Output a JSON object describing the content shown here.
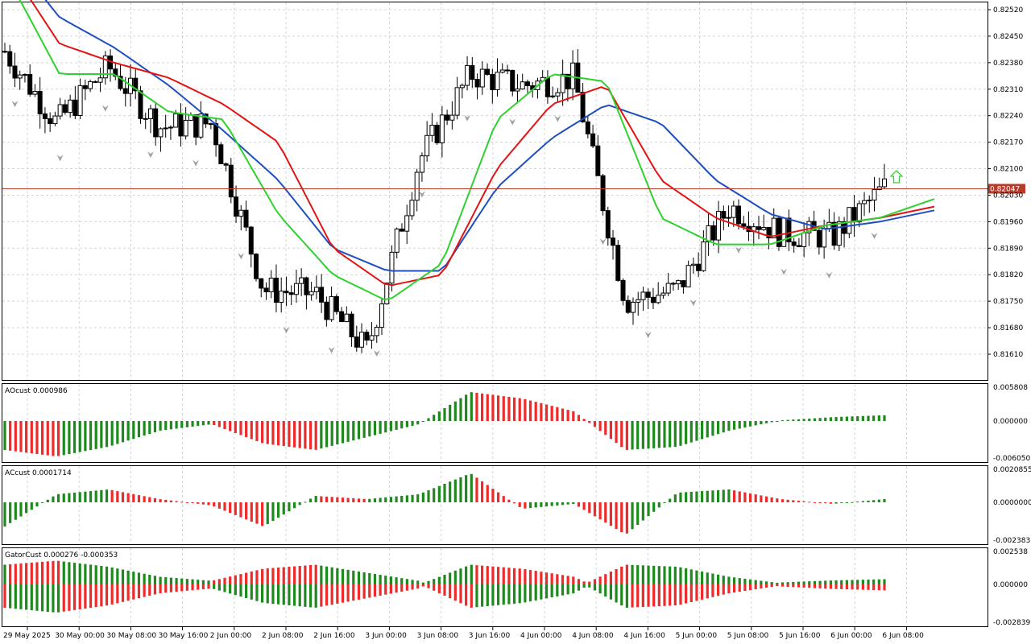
{
  "colors": {
    "background": "#ffffff",
    "grid": "#d4d4d4",
    "candle_bull": "#ffffff",
    "candle_bear": "#000000",
    "jaw": "#1f4fbf",
    "teeth": "#e11414",
    "lips": "#2fd12f",
    "bid_line": "#b83a2a",
    "bid_label_bg": "#b83a2a",
    "hist_green": "#1e8a1e",
    "hist_red": "#ee2a2a",
    "fractal": "#a0a0a0",
    "signal_arrow": "#3ccf3c"
  },
  "price_panel": {
    "price_ticks": [
      "0.82520",
      "0.82450",
      "0.82380",
      "0.82310",
      "0.82240",
      "0.82170",
      "0.82100",
      "0.82030",
      "0.81960",
      "0.81890",
      "0.81820",
      "0.81750",
      "0.81680",
      "0.81610"
    ],
    "current_price": "0.82047",
    "current_price_value": 0.82047
  },
  "ao_panel": {
    "label": "AOcust 0.000986",
    "ticks": [
      "0.005808",
      "0.000000",
      "-0.006050"
    ]
  },
  "ac_panel": {
    "label": "ACcust 0.0001714",
    "ticks": [
      "0.0020855",
      "0.0000000",
      "-0.0023832"
    ]
  },
  "gator_panel": {
    "label": "GatorCust 0.000276 -0.000353",
    "ticks": [
      "0.002538",
      "0.000000",
      "-0.002839"
    ]
  },
  "time_axis": [
    "29 May 2025",
    "30 May 00:00",
    "30 May 08:00",
    "30 May 16:00",
    "2 Jun 00:00",
    "2 Jun 08:00",
    "2 Jun 16:00",
    "3 Jun 00:00",
    "3 Jun 08:00",
    "3 Jun 16:00",
    "4 Jun 00:00",
    "4 Jun 08:00",
    "4 Jun 16:00",
    "5 Jun 00:00",
    "5 Jun 08:00",
    "5 Jun 16:00",
    "6 Jun 00:00",
    "6 Jun 08:00"
  ],
  "chart_data": {
    "type": "candlestick",
    "symbol_timeframe": "",
    "x_categories": [
      "29 May 2025",
      "30 May 00:00",
      "30 May 08:00",
      "30 May 16:00",
      "2 Jun 00:00",
      "2 Jun 08:00",
      "2 Jun 16:00",
      "3 Jun 00:00",
      "3 Jun 08:00",
      "3 Jun 16:00",
      "4 Jun 00:00",
      "4 Jun 08:00",
      "4 Jun 16:00",
      "5 Jun 00:00",
      "5 Jun 08:00",
      "5 Jun 16:00",
      "6 Jun 00:00",
      "6 Jun 08:00"
    ],
    "y_range": [
      0.8157,
      0.8255
    ],
    "grid": true,
    "key_points": [
      {
        "time": "29 May 2025",
        "close": 0.8241
      },
      {
        "time": "30 May 00:00",
        "close": 0.8222
      },
      {
        "time": "30 May 08:00",
        "close": 0.8237
      },
      {
        "time": "30 May 16:00",
        "close": 0.8221
      },
      {
        "time": "2 Jun 00:00",
        "close": 0.8222
      },
      {
        "time": "2 Jun 08:00",
        "close": 0.8178
      },
      {
        "time": "2 Jun 16:00",
        "close": 0.8177
      },
      {
        "time": "3 Jun 00:00",
        "close": 0.8162
      },
      {
        "time": "3 Jun 08:00",
        "close": 0.8212
      },
      {
        "time": "3 Jun 16:00",
        "close": 0.8235
      },
      {
        "time": "4 Jun 00:00",
        "close": 0.8232
      },
      {
        "time": "4 Jun 08:00",
        "close": 0.8234
      },
      {
        "time": "4 Jun 16:00",
        "close": 0.8175
      },
      {
        "time": "5 Jun 00:00",
        "close": 0.8178
      },
      {
        "time": "5 Jun 08:00",
        "close": 0.82
      },
      {
        "time": "5 Jun 16:00",
        "close": 0.8193
      },
      {
        "time": "6 Jun 00:00",
        "close": 0.8192
      },
      {
        "time": "6 Jun 08:00",
        "close": 0.8205
      }
    ],
    "alligator": {
      "jaw_points": [
        0.8268,
        0.825,
        0.8242,
        0.8232,
        0.822,
        0.8207,
        0.8189,
        0.8183,
        0.8183,
        0.8205,
        0.8218,
        0.8227,
        0.8222,
        0.8207,
        0.8198,
        0.8194,
        0.8196,
        0.8199
      ],
      "teeth_points": [
        0.8265,
        0.8243,
        0.8238,
        0.8234,
        0.8227,
        0.8217,
        0.8189,
        0.8179,
        0.8182,
        0.821,
        0.8227,
        0.8232,
        0.8207,
        0.8197,
        0.8192,
        0.8195,
        0.8197,
        0.82
      ],
      "lips_points": [
        0.8262,
        0.8235,
        0.8235,
        0.8225,
        0.8223,
        0.8198,
        0.8182,
        0.8175,
        0.8185,
        0.8223,
        0.8235,
        0.8233,
        0.8197,
        0.819,
        0.819,
        0.8195,
        0.8197,
        0.8202
      ]
    },
    "series": [
      {
        "name": "AOcust",
        "values": [
          -0.0045,
          -0.0055,
          -0.004,
          -0.0015,
          -0.0005,
          -0.0035,
          -0.0045,
          -0.0025,
          -0.0005,
          0.0045,
          0.0035,
          0.0015,
          -0.0045,
          -0.004,
          -0.0015,
          0.0001,
          0.0006,
          0.0009
        ]
      },
      {
        "name": "ACcust",
        "values": [
          -0.0015,
          0.0005,
          0.0008,
          0.0002,
          -0.0002,
          -0.0015,
          0.0004,
          0.0002,
          0.0005,
          0.0018,
          -0.0004,
          -0.0001,
          -0.002,
          0.0006,
          0.0008,
          0.0002,
          -0.0001,
          0.0002
        ]
      }
    ]
  }
}
